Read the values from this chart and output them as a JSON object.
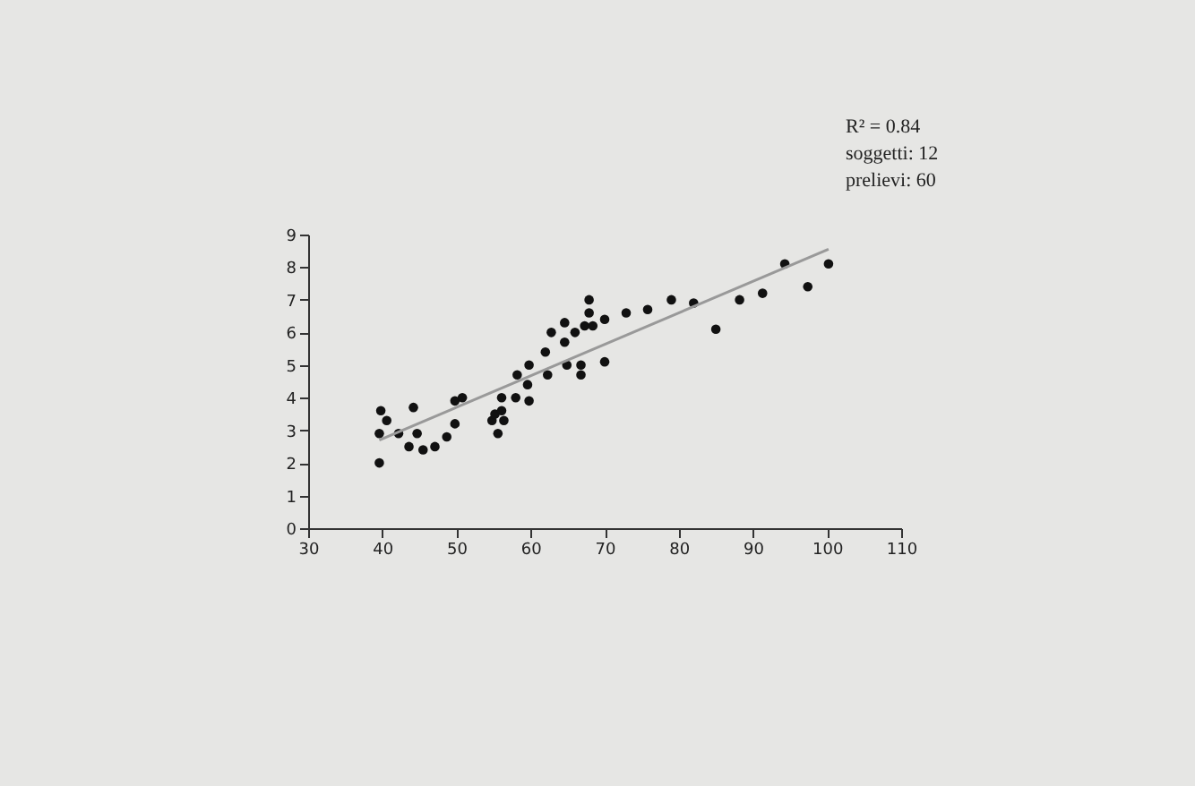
{
  "chart_data": {
    "type": "scatter",
    "annotations": [
      "R² = 0.84",
      "soggetti: 12",
      "prelievi: 60"
    ],
    "xlim": [
      30,
      110
    ],
    "xticks": [
      30,
      40,
      50,
      60,
      70,
      80,
      90,
      100,
      110
    ],
    "ylim": [
      0,
      9
    ],
    "yticks": [
      0,
      1,
      2,
      3,
      4,
      5,
      6,
      7,
      8,
      9
    ],
    "grid": false,
    "series": [
      {
        "color": "#111111",
        "marker": "circle",
        "x": [
          39.6,
          39.8,
          39.6,
          40.6,
          42.2,
          43.6,
          44.2,
          44.7,
          45.5,
          47.1,
          48.7,
          49.8,
          49.8,
          50.8,
          54.8,
          55.2,
          55.6,
          56.1,
          56.1,
          56.4,
          58.2,
          58.0,
          59.6,
          59.8,
          59.8,
          62.0,
          62.3,
          62.8,
          64.6,
          64.6,
          64.9,
          66.0,
          66.8,
          66.8,
          67.3,
          67.9,
          67.9,
          68.4,
          70.0,
          70.0,
          72.9,
          75.8,
          79.0,
          82.0,
          85.0,
          88.2,
          91.3,
          94.3,
          97.4,
          100.2
        ],
        "values": [
          2.0,
          3.6,
          2.9,
          3.3,
          2.9,
          2.5,
          3.7,
          2.9,
          2.4,
          2.5,
          2.8,
          3.9,
          3.2,
          4.0,
          3.3,
          3.5,
          2.9,
          4.0,
          3.6,
          3.3,
          4.7,
          4.0,
          4.4,
          5.0,
          3.9,
          5.4,
          4.7,
          6.0,
          6.3,
          5.7,
          5.0,
          6.0,
          5.0,
          4.7,
          6.2,
          7.0,
          6.6,
          6.2,
          6.4,
          5.1,
          6.6,
          6.7,
          7.0,
          6.9,
          6.1,
          7.0,
          7.2,
          8.1,
          7.4,
          8.1
        ]
      },
      {
        "type": "line",
        "color": "#999999",
        "line_style": "solid",
        "x": [
          39.6,
          100.2
        ],
        "values": [
          2.7,
          8.55
        ]
      }
    ]
  }
}
